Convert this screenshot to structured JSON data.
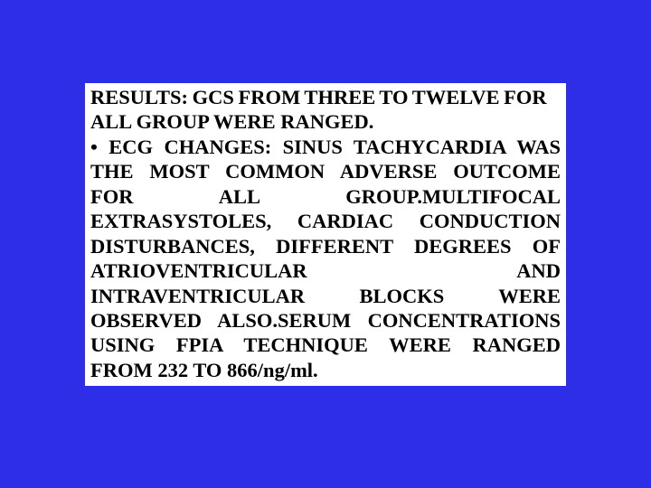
{
  "slide": {
    "background_color": "#2e2ee8",
    "text_box": {
      "background_color": "#ffffff",
      "text_color": "#000000",
      "font_family": "Times New Roman",
      "font_weight": "bold",
      "font_size_pt": 17,
      "line1": "RESULTS: GCS FROM THREE TO TWELVE FOR",
      "line2": "ALL GROUP WERE RANGED.",
      "body": "• ECG CHANGES: SINUS TACHYCARDIA WAS THE MOST COMMON ADVERSE OUTCOME FOR ALL GROUP.MULTIFOCAL EXTRASYSTOLES, CARDIAC CONDUCTION DISTURBANCES, DIFFERENT DEGREES OF  ATRIOVENTRICULAR AND INTRAVENTRICULAR BLOCKS WERE OBSERVED ALSO.SERUM CONCENTRATIONS USING FPIA TECHNIQUE WERE RANGED FROM 232 TO 866/ng/ml."
    }
  }
}
